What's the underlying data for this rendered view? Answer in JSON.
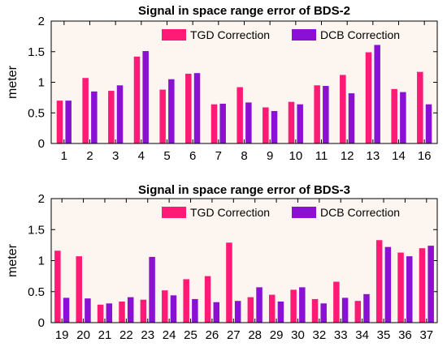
{
  "chart_data": [
    {
      "type": "bar",
      "title": "Signal in space range error of BDS-2",
      "xlabel": "",
      "ylabel": "meter",
      "ylim": [
        0,
        2
      ],
      "yticks": [
        "0",
        "0.5",
        "1",
        "1.5",
        "2"
      ],
      "categories": [
        "1",
        "2",
        "3",
        "4",
        "5",
        "6",
        "7",
        "8",
        "9",
        "10",
        "11",
        "12",
        "13",
        "14",
        "16"
      ],
      "series": [
        {
          "name": "TGD Correction",
          "color": "#ff1a75",
          "values": [
            0.7,
            1.07,
            0.86,
            1.42,
            0.88,
            1.14,
            0.64,
            0.92,
            0.59,
            0.68,
            0.95,
            1.12,
            1.49,
            0.89,
            1.17
          ]
        },
        {
          "name": "DCB Correction",
          "color": "#8a11d4",
          "values": [
            0.7,
            0.85,
            0.95,
            1.51,
            1.05,
            1.15,
            0.65,
            0.67,
            0.53,
            0.64,
            0.94,
            0.82,
            1.61,
            0.84,
            0.64
          ]
        }
      ],
      "legend": "top-right",
      "grid": false
    },
    {
      "type": "bar",
      "title": "Signal in space range error of BDS-3",
      "xlabel": "",
      "ylabel": "meter",
      "ylim": [
        0,
        2
      ],
      "yticks": [
        "0",
        "0.5",
        "1",
        "1.5",
        "2"
      ],
      "categories": [
        "19",
        "20",
        "21",
        "22",
        "23",
        "24",
        "25",
        "26",
        "27",
        "28",
        "29",
        "30",
        "32",
        "33",
        "34",
        "35",
        "36",
        "37"
      ],
      "series": [
        {
          "name": "TGD Correction",
          "color": "#ff1a75",
          "values": [
            1.16,
            1.07,
            0.29,
            0.34,
            0.37,
            0.52,
            0.7,
            0.75,
            1.29,
            0.41,
            0.45,
            0.53,
            0.38,
            0.66,
            0.35,
            1.33,
            1.13,
            1.2
          ]
        },
        {
          "name": "DCB Correction",
          "color": "#8a11d4",
          "values": [
            0.4,
            0.39,
            0.31,
            0.41,
            1.06,
            0.44,
            0.38,
            0.33,
            0.35,
            0.57,
            0.34,
            0.57,
            0.31,
            0.4,
            0.46,
            1.22,
            1.07,
            1.24
          ]
        }
      ],
      "legend": "top-right",
      "grid": false
    }
  ]
}
